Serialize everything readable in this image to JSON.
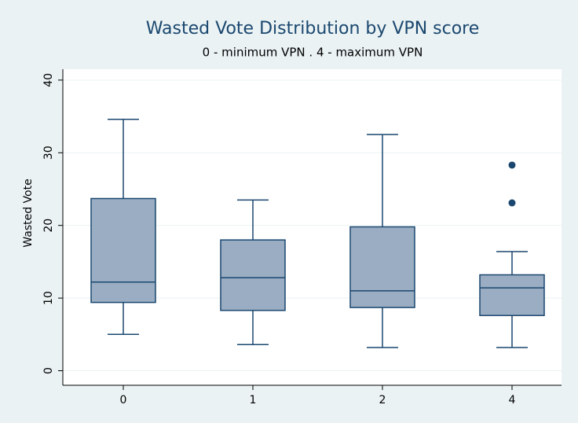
{
  "chart_data": {
    "type": "box",
    "title": "Wasted Vote Distribution by VPN score",
    "subtitle": "0 - minimum VPN . 4 - maximum VPN",
    "y_label": "Wasted Vote",
    "categories": [
      "0",
      "1",
      "2",
      "4"
    ],
    "boxes": [
      {
        "min": 5.0,
        "q1": 9.4,
        "median": 12.2,
        "q3": 23.7,
        "max": 34.6,
        "outliers": []
      },
      {
        "min": 3.6,
        "q1": 8.3,
        "median": 12.8,
        "q3": 18.0,
        "max": 23.5,
        "outliers": []
      },
      {
        "min": 3.2,
        "q1": 8.7,
        "median": 11.0,
        "q3": 19.8,
        "max": 32.5,
        "outliers": []
      },
      {
        "min": 3.2,
        "q1": 7.6,
        "median": 11.4,
        "q3": 13.2,
        "max": 16.4,
        "outliers": [
          23.1,
          28.3
        ]
      }
    ],
    "color": "#9aadc2",
    "line_color": "#1a476f",
    "ylim": [
      -2,
      41.5
    ],
    "yticks": [
      0,
      10,
      20,
      30,
      40
    ],
    "grid": true
  }
}
